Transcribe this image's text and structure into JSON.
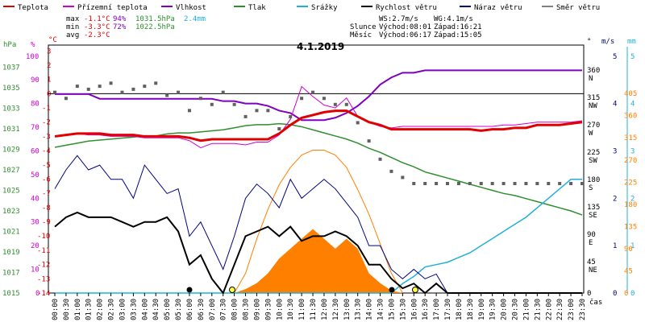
{
  "legend": [
    {
      "label": "Teplota",
      "color": "#e00000"
    },
    {
      "label": "Přízemní teplota",
      "color": "#d000d0"
    },
    {
      "label": "Vlhkost",
      "color": "#8000c0"
    },
    {
      "label": "Tlak",
      "color": "#2f8f2f"
    },
    {
      "label": "Srážky",
      "color": "#20b0d8"
    },
    {
      "label": "Rychlost větru",
      "color": "#000000"
    },
    {
      "label": "Náraz větru",
      "color": "#000080"
    },
    {
      "label": "Směr větru",
      "color": "#808080"
    }
  ],
  "stats": {
    "max": {
      "label": "max",
      "temp": "-1.1°C",
      "hum": "94%",
      "press": "1031.5hPa",
      "rain": "2.4mm"
    },
    "min": {
      "label": "min",
      "temp": "-3.3°C",
      "hum": "72%",
      "press": "1022.5hPa"
    },
    "avg": {
      "label": "avg",
      "temp": "-2.3°C"
    }
  },
  "wind_info": {
    "ws": "WS:2.7m/s",
    "wg": "WG:4.1m/s"
  },
  "sun": {
    "label": "Slunce",
    "rise": "Východ:08:01",
    "set": "Západ:16:21"
  },
  "moon": {
    "label": "Měsíc",
    "rise": "Východ:06:17",
    "set": "Západ:15:05"
  },
  "chart_data": {
    "type": "line",
    "title": "4.1.2019",
    "x": [
      "00:00",
      "00:30",
      "01:00",
      "01:30",
      "02:00",
      "02:30",
      "03:00",
      "03:30",
      "04:00",
      "04:30",
      "05:00",
      "05:30",
      "06:00",
      "06:30",
      "07:00",
      "07:30",
      "08:00",
      "08:30",
      "09:00",
      "09:30",
      "10:00",
      "10:30",
      "11:00",
      "11:30",
      "12:00",
      "12:30",
      "13:00",
      "13:30",
      "14:00",
      "14:30",
      "15:00",
      "15:30",
      "16:00",
      "16:30",
      "17:00",
      "17:30",
      "18:00",
      "18:30",
      "19:00",
      "19:30",
      "20:00",
      "20:30",
      "21:00",
      "21:30",
      "22:00",
      "22:30",
      "23:00",
      "23:30"
    ],
    "xlabel": "čas",
    "axes": {
      "hPa": {
        "ticks": [
          1015,
          1017,
          1019,
          1021,
          1023,
          1025,
          1027,
          1029,
          1031,
          1033,
          1035,
          1037
        ],
        "range": [
          1015,
          1039
        ]
      },
      "%": {
        "ticks": [
          0,
          10,
          20,
          30,
          40,
          50,
          60,
          70,
          80,
          90,
          100
        ],
        "range": [
          0,
          104
        ]
      },
      "°C": {
        "ticks": [
          3,
          2,
          1,
          0,
          -1,
          -2,
          -3,
          -4,
          -5,
          -6,
          -7,
          -8,
          -9,
          -10,
          -11,
          -12,
          -13,
          -14
        ],
        "range": [
          -14,
          3.3
        ]
      },
      "°": {
        "ticks": [
          "0",
          "45 NE",
          "90 E",
          "135 SE",
          "180 S",
          "225 SW",
          "270 W",
          "315 NW",
          "360 N"
        ],
        "range": [
          0,
          405
        ]
      },
      "m/s": {
        "ticks": [
          0,
          1,
          2,
          3,
          4,
          5
        ],
        "range": [
          0,
          5.2
        ]
      },
      "mm": {
        "ticks": [
          0,
          1,
          2,
          3,
          4,
          5
        ],
        "range": [
          0,
          5.2
        ]
      },
      "W/m²": {
        "ticks": [
          0,
          45,
          90,
          135,
          180,
          225,
          270,
          315,
          360,
          405
        ],
        "range": [
          0,
          500
        ]
      }
    },
    "series": [
      {
        "name": "Teplota",
        "color": "#e00000",
        "unit": "°C",
        "values": [
          -3.0,
          -2.9,
          -2.8,
          -2.8,
          -2.8,
          -2.9,
          -2.9,
          -2.9,
          -3.0,
          -3.0,
          -3.0,
          -3.0,
          -3.1,
          -3.3,
          -3.2,
          -3.2,
          -3.2,
          -3.2,
          -3.2,
          -3.2,
          -2.8,
          -2.2,
          -1.7,
          -1.5,
          -1.3,
          -1.2,
          -1.2,
          -1.6,
          -2.0,
          -2.2,
          -2.5,
          -2.5,
          -2.5,
          -2.5,
          -2.5,
          -2.5,
          -2.5,
          -2.5,
          -2.6,
          -2.5,
          -2.5,
          -2.4,
          -2.4,
          -2.2,
          -2.2,
          -2.2,
          -2.1,
          -2.0
        ]
      },
      {
        "name": "Přízemní teplota",
        "color": "#d000d0",
        "unit": "°C",
        "values": [
          -3.0,
          -2.9,
          -2.8,
          -2.9,
          -2.9,
          -3.0,
          -3.0,
          -3.0,
          -3.1,
          -3.1,
          -3.1,
          -3.1,
          -3.3,
          -3.8,
          -3.5,
          -3.5,
          -3.5,
          -3.6,
          -3.4,
          -3.4,
          -2.9,
          -1.8,
          0.5,
          -0.2,
          -0.8,
          -1.0,
          -0.3,
          -1.6,
          -2.0,
          -2.3,
          -2.4,
          -2.3,
          -2.3,
          -2.3,
          -2.3,
          -2.3,
          -2.3,
          -2.3,
          -2.3,
          -2.3,
          -2.2,
          -2.2,
          -2.1,
          -2.0,
          -2.0,
          -2.0,
          -2.0,
          -1.9
        ]
      },
      {
        "name": "Vlhkost",
        "color": "#8000c0",
        "unit": "%",
        "values": [
          84,
          84,
          84,
          84,
          82,
          82,
          82,
          82,
          82,
          82,
          82,
          82,
          82,
          82,
          82,
          81,
          81,
          80,
          80,
          79,
          77,
          76,
          73,
          73,
          73,
          74,
          76,
          79,
          83,
          88,
          91,
          93,
          93,
          94,
          94,
          94,
          94,
          94,
          94,
          94,
          94,
          94,
          94,
          94,
          94,
          94,
          94,
          94
        ]
      },
      {
        "name": "Tlak",
        "color": "#2f8f2f",
        "unit": "hPa",
        "values": [
          1029.2,
          1029.4,
          1029.6,
          1029.8,
          1029.9,
          1030.0,
          1030.1,
          1030.2,
          1030.3,
          1030.3,
          1030.5,
          1030.6,
          1030.6,
          1030.7,
          1030.8,
          1030.9,
          1031.1,
          1031.3,
          1031.4,
          1031.4,
          1031.5,
          1031.4,
          1031.2,
          1030.9,
          1030.6,
          1030.3,
          1030.0,
          1029.6,
          1029.1,
          1028.7,
          1028.2,
          1027.7,
          1027.3,
          1026.8,
          1026.5,
          1026.2,
          1025.9,
          1025.6,
          1025.3,
          1025.0,
          1024.7,
          1024.5,
          1024.2,
          1023.9,
          1023.6,
          1023.3,
          1023.0,
          1022.6
        ]
      },
      {
        "name": "Srážky",
        "color": "#20b0d8",
        "unit": "mm",
        "values": [
          0,
          0,
          0,
          0,
          0,
          0,
          0,
          0,
          0,
          0,
          0,
          0,
          0,
          0,
          0,
          0,
          0,
          0,
          0,
          0,
          0,
          0,
          0,
          0,
          0,
          0,
          0,
          0,
          0,
          0,
          0,
          0.2,
          0.35,
          0.55,
          0.6,
          0.65,
          0.75,
          0.85,
          1.0,
          1.15,
          1.3,
          1.45,
          1.6,
          1.8,
          2.0,
          2.2,
          2.4,
          2.4
        ]
      },
      {
        "name": "Rychlost větru",
        "color": "#000000",
        "unit": "m/s",
        "values": [
          1.4,
          1.6,
          1.7,
          1.6,
          1.6,
          1.6,
          1.5,
          1.4,
          1.5,
          1.5,
          1.6,
          1.3,
          0.6,
          0.8,
          0.3,
          0.0,
          0.6,
          1.2,
          1.3,
          1.4,
          1.2,
          1.4,
          1.1,
          1.2,
          1.2,
          1.3,
          1.2,
          1.0,
          0.6,
          0.6,
          0.3,
          0.1,
          0.2,
          0.0,
          0.2,
          0.0,
          0.0,
          0.0,
          0.0,
          0.0,
          0.0,
          0.0,
          0.0,
          0.0,
          0.0,
          0.0,
          0.0,
          0.0
        ]
      },
      {
        "name": "Náraz větru",
        "color": "#000080",
        "unit": "m/s",
        "values": [
          2.2,
          2.6,
          2.9,
          2.6,
          2.7,
          2.4,
          2.4,
          2.0,
          2.7,
          2.4,
          2.1,
          2.2,
          1.2,
          1.5,
          1.0,
          0.5,
          1.2,
          2.0,
          2.3,
          2.1,
          1.8,
          2.4,
          2.0,
          2.2,
          2.4,
          2.2,
          1.9,
          1.6,
          1.0,
          1.0,
          0.5,
          0.3,
          0.5,
          0.3,
          0.4,
          0.0,
          0.0,
          0.0,
          0.0,
          0.0,
          0.0,
          0.0,
          0.0,
          0.0,
          0.0,
          0.0,
          0.0,
          0.0
        ]
      },
      {
        "name": "Směr větru",
        "color": "#606060",
        "unit": "°",
        "values": [
          330,
          320,
          340,
          335,
          340,
          345,
          330,
          335,
          340,
          345,
          325,
          330,
          300,
          320,
          310,
          330,
          310,
          290,
          300,
          300,
          270,
          290,
          320,
          330,
          320,
          310,
          310,
          280,
          250,
          220,
          200,
          190,
          180,
          180,
          180,
          180,
          180,
          180,
          180,
          180,
          180,
          180,
          180,
          180,
          180,
          180,
          180,
          180
        ]
      },
      {
        "name": "Sluneční záření",
        "color": "#ff8000",
        "unit": "W/m²",
        "values": [
          0,
          0,
          0,
          0,
          0,
          0,
          0,
          0,
          0,
          0,
          0,
          0,
          0,
          0,
          0,
          0,
          0,
          8,
          20,
          40,
          70,
          90,
          110,
          130,
          110,
          90,
          110,
          90,
          40,
          20,
          5,
          0,
          0,
          0,
          0,
          0,
          0,
          0,
          0,
          0,
          0,
          0,
          0,
          0,
          0,
          0,
          0,
          0
        ]
      },
      {
        "name": "Teoretické záření",
        "color": "#ff8000",
        "unit": "W/m²",
        "values": [
          0,
          0,
          0,
          0,
          0,
          0,
          0,
          0,
          0,
          0,
          0,
          0,
          0,
          0,
          0,
          0,
          0,
          40,
          110,
          170,
          220,
          255,
          280,
          290,
          290,
          280,
          255,
          210,
          160,
          100,
          40,
          0,
          0,
          0,
          0,
          0,
          0,
          0,
          0,
          0,
          0,
          0,
          0,
          0,
          0,
          0,
          0,
          0
        ]
      }
    ]
  }
}
